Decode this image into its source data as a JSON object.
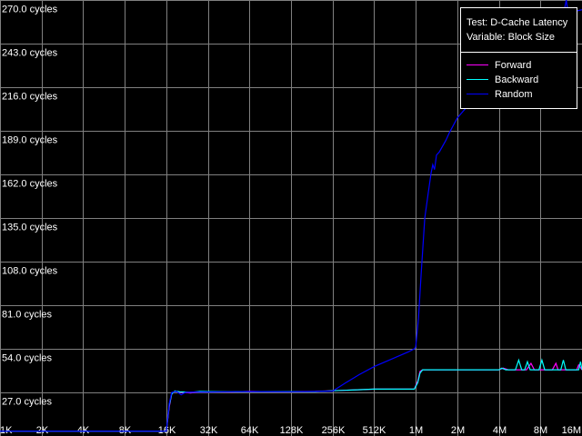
{
  "chart_data": {
    "type": "line",
    "title": "Test: D-Cache Latency",
    "subtitle": "Variable: Block Size",
    "xscale": "log2",
    "xlim_kb": [
      1,
      16384
    ],
    "ylim": [
      0,
      270
    ],
    "grid": true,
    "legend_placement": "top-right",
    "x_ticks": [
      {
        "kb": 1,
        "label": "1K"
      },
      {
        "kb": 2,
        "label": "2K"
      },
      {
        "kb": 4,
        "label": "4K"
      },
      {
        "kb": 8,
        "label": "8K"
      },
      {
        "kb": 16,
        "label": "16K"
      },
      {
        "kb": 32,
        "label": "32K"
      },
      {
        "kb": 64,
        "label": "64K"
      },
      {
        "kb": 128,
        "label": "128K"
      },
      {
        "kb": 256,
        "label": "256K"
      },
      {
        "kb": 512,
        "label": "512K"
      },
      {
        "kb": 1024,
        "label": "1M"
      },
      {
        "kb": 2048,
        "label": "2M"
      },
      {
        "kb": 4096,
        "label": "4M"
      },
      {
        "kb": 8192,
        "label": "8M"
      },
      {
        "kb": 16384,
        "label": "16M"
      }
    ],
    "y_ticks": [
      {
        "v": 270,
        "label": "270.0 cycles"
      },
      {
        "v": 243,
        "label": "243.0 cycles"
      },
      {
        "v": 216,
        "label": "216.0 cycles"
      },
      {
        "v": 189,
        "label": "189.0 cycles"
      },
      {
        "v": 162,
        "label": "162.0 cycles"
      },
      {
        "v": 135,
        "label": "135.0 cycles"
      },
      {
        "v": 108,
        "label": "108.0 cycles"
      },
      {
        "v": 81,
        "label": "81.0 cycles"
      },
      {
        "v": 54,
        "label": "54.0 cycles"
      },
      {
        "v": 27,
        "label": "27.0 cycles"
      }
    ],
    "series": [
      {
        "name": "Forward",
        "color": "#ff00ff",
        "points": [
          [
            1,
            3
          ],
          [
            2,
            3
          ],
          [
            4,
            3
          ],
          [
            8,
            3
          ],
          [
            16,
            3
          ],
          [
            16.8,
            18
          ],
          [
            17.5,
            26
          ],
          [
            18.5,
            27.8
          ],
          [
            20,
            27.2
          ],
          [
            24,
            26.6
          ],
          [
            28,
            27.5
          ],
          [
            32,
            27.4
          ],
          [
            48,
            27.3
          ],
          [
            64,
            27.6
          ],
          [
            96,
            27.4
          ],
          [
            128,
            27.5
          ],
          [
            192,
            27.6
          ],
          [
            256,
            28
          ],
          [
            512,
            29
          ],
          [
            1000,
            29
          ],
          [
            1060,
            34
          ],
          [
            1100,
            40
          ],
          [
            1150,
            41
          ],
          [
            2048,
            41
          ],
          [
            4096,
            41
          ],
          [
            4400,
            42
          ],
          [
            4800,
            41
          ],
          [
            6500,
            41
          ],
          [
            7000,
            45
          ],
          [
            7400,
            41
          ],
          [
            10000,
            41
          ],
          [
            10600,
            45
          ],
          [
            11000,
            41
          ],
          [
            15000,
            41
          ],
          [
            15500,
            44
          ],
          [
            16384,
            41
          ]
        ]
      },
      {
        "name": "Backward",
        "color": "#00ffff",
        "points": [
          [
            1,
            3
          ],
          [
            2,
            3
          ],
          [
            4,
            3
          ],
          [
            8,
            3
          ],
          [
            16,
            3
          ],
          [
            16.8,
            19
          ],
          [
            17.5,
            26
          ],
          [
            18.5,
            27.9
          ],
          [
            20,
            27.4
          ],
          [
            24,
            27.0
          ],
          [
            28,
            27.6
          ],
          [
            32,
            27.5
          ],
          [
            48,
            27.4
          ],
          [
            64,
            27.5
          ],
          [
            96,
            27.5
          ],
          [
            128,
            27.5
          ],
          [
            192,
            27.5
          ],
          [
            256,
            28
          ],
          [
            512,
            29
          ],
          [
            1000,
            29
          ],
          [
            1060,
            33
          ],
          [
            1100,
            39
          ],
          [
            1150,
            41
          ],
          [
            2048,
            41
          ],
          [
            4096,
            41
          ],
          [
            4300,
            42
          ],
          [
            4600,
            41
          ],
          [
            5400,
            41
          ],
          [
            5700,
            47
          ],
          [
            6000,
            41
          ],
          [
            6300,
            41
          ],
          [
            6600,
            46
          ],
          [
            6900,
            41
          ],
          [
            8000,
            41
          ],
          [
            8400,
            47
          ],
          [
            8800,
            41
          ],
          [
            11500,
            41
          ],
          [
            12000,
            47
          ],
          [
            12500,
            41
          ],
          [
            15500,
            41
          ],
          [
            16000,
            46
          ],
          [
            16384,
            41
          ]
        ]
      },
      {
        "name": "Random",
        "color": "#0000ff",
        "points": [
          [
            1,
            3
          ],
          [
            2,
            3
          ],
          [
            4,
            3
          ],
          [
            8,
            3
          ],
          [
            16,
            3
          ],
          [
            16.8,
            20
          ],
          [
            17.5,
            27
          ],
          [
            19,
            27.6
          ],
          [
            20.5,
            25.5
          ],
          [
            22,
            27
          ],
          [
            26,
            27.3
          ],
          [
            32,
            27.2
          ],
          [
            64,
            27.5
          ],
          [
            128,
            27.4
          ],
          [
            256,
            27.8
          ],
          [
            320,
            33
          ],
          [
            400,
            38
          ],
          [
            512,
            43
          ],
          [
            700,
            48
          ],
          [
            900,
            52
          ],
          [
            1000,
            54
          ],
          [
            1024,
            55
          ],
          [
            1073,
            73
          ],
          [
            1122,
            101
          ],
          [
            1190,
            135
          ],
          [
            1260,
            150
          ],
          [
            1325,
            163
          ],
          [
            1360,
            168
          ],
          [
            1400,
            165
          ],
          [
            1448,
            174
          ],
          [
            1520,
            176
          ],
          [
            1690,
            183
          ],
          [
            1800,
            188
          ],
          [
            2048,
            197
          ],
          [
            2200,
            200
          ],
          [
            2660,
            208
          ],
          [
            2900,
            214
          ],
          [
            3300,
            216
          ],
          [
            4096,
            225
          ],
          [
            4600,
            230
          ],
          [
            5680,
            239
          ],
          [
            6500,
            244
          ],
          [
            8192,
            247
          ],
          [
            9000,
            252
          ],
          [
            10500,
            258
          ],
          [
            12150,
            263
          ],
          [
            12600,
            270
          ],
          [
            13000,
            262
          ],
          [
            16384,
            264
          ]
        ]
      }
    ]
  }
}
